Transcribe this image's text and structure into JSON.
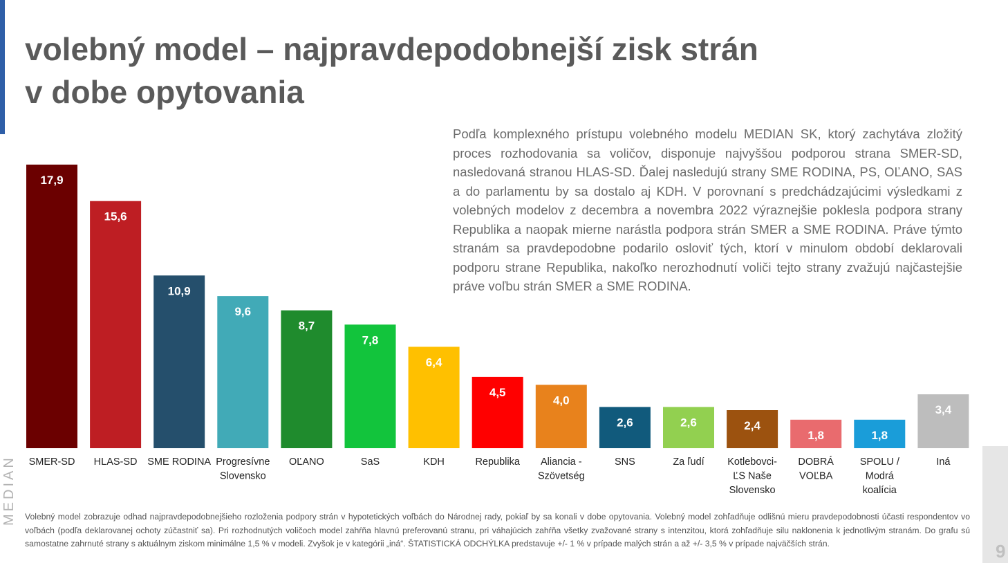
{
  "title": {
    "line1": "volebný model – najpravdepodobnejší zisk strán",
    "line2": "v dobe opytovania"
  },
  "description": "Podľa komplexného prístupu volebného modelu MEDIAN SK, ktorý zachytáva zložitý proces rozhodovania sa voličov, disponuje najvyššou podporou strana SMER-SD, nasledovaná stranou HLAS-SD. Ďalej nasledujú strany SME RODINA, PS, OĽANO, SAS a do parlamentu by sa dostalo aj KDH. V porovnaní s predchádzajúcimi výsledkami z volebných modelov z decembra a novembra 2022 výraznejšie poklesla podpora strany Republika a naopak mierne narástla podpora strán SMER a SME RODINA. Práve týmto stranám sa pravdepodobne podarilo osloviť tých, ktorí v minulom období deklarovali podporu strane Republika, nakoľko nerozhodnutí voliči tejto strany zvažujú najčastejšie práve voľbu strán SMER a SME RODINA.",
  "footnote": "Volebný model zobrazuje odhad najpravdepodobnejšieho rozloženia podpory strán v hypotetických voľbách do Národnej rady, pokiaľ by sa konali v dobe opytovania. Volebný model zohľadňuje odlišnú mieru pravdepodobnosti účasti respondentov vo voľbách (podľa deklarovanej ochoty zúčastniť sa). Pri rozhodnutých voličoch model zahŕňa hlavnú preferovanú stranu, pri váhajúcich zahŕňa všetky zvažované strany s intenzitou, ktorá zohľadňuje silu naklonenia k jednotlivým stranám. Do grafu sú samostatne zahrnuté strany s aktuálnym ziskom minimálne 1,5 % v modeli. Zvyšok je v kategórii „iná“. ŠTATISTICKÁ ODCHÝLKA predstavuje  +/- 1 % v prípade malých strán a až +/- 3,5 % v prípade najväčších strán.",
  "brand": "MEDIAN",
  "page_number": "9",
  "chart_data": {
    "type": "bar",
    "categories": [
      [
        "SMER-SD"
      ],
      [
        "HLAS-SD"
      ],
      [
        "SME RODINA"
      ],
      [
        "Progresívne",
        "Slovensko"
      ],
      [
        "OĽANO"
      ],
      [
        "SaS"
      ],
      [
        "KDH"
      ],
      [
        "Republika"
      ],
      [
        "Aliancia -",
        "Szövetség"
      ],
      [
        "SNS"
      ],
      [
        "Za ľudí"
      ],
      [
        "Kotlebovci-",
        "ĽS Naše",
        "Slovensko"
      ],
      [
        "DOBRÁ",
        "VOĽBA"
      ],
      [
        "SPOLU /",
        "Modrá",
        "koalícia"
      ],
      [
        "Iná"
      ]
    ],
    "values": [
      17.9,
      15.6,
      10.9,
      9.6,
      8.7,
      7.8,
      6.4,
      4.5,
      4.0,
      2.6,
      2.6,
      2.4,
      1.8,
      1.8,
      3.4
    ],
    "value_labels": [
      "17,9",
      "15,6",
      "10,9",
      "9,6",
      "8,7",
      "7,8",
      "6,4",
      "4,5",
      "4,0",
      "2,6",
      "2,6",
      "2,4",
      "1,8",
      "1,8",
      "3,4"
    ],
    "colors": [
      "#6b0000",
      "#be1e23",
      "#254f6c",
      "#41aab7",
      "#1f8b2d",
      "#12c43c",
      "#ffc000",
      "#ff0000",
      "#e8821c",
      "#115a7c",
      "#92d050",
      "#9c520f",
      "#e96b6e",
      "#1a9dd9",
      "#bdbdbd"
    ],
    "ylim": [
      0,
      17.9
    ],
    "grid": false,
    "legend": "none"
  }
}
